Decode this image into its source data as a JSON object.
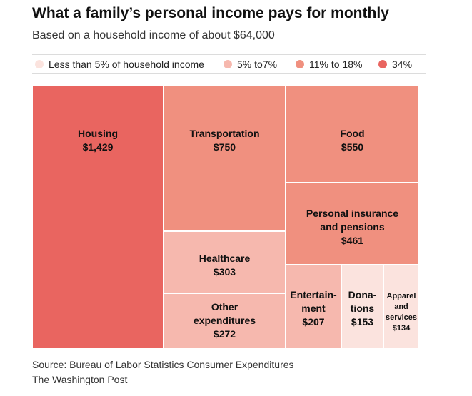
{
  "header": {
    "title": "What a family’s personal income pays for monthly",
    "subtitle": "Based on a household income of about $64,000"
  },
  "legend": [
    {
      "label": "Less than 5% of household income",
      "color": "#fbe3de"
    },
    {
      "label": "5% to7%",
      "color": "#f6b8ae"
    },
    {
      "label": "11% to 18%",
      "color": "#f0907f"
    },
    {
      "label": "34%",
      "color": "#e96560"
    }
  ],
  "chart_data": {
    "type": "treemap",
    "title": "What a family’s personal income pays for monthly",
    "subtitle": "Based on a household income of about $64,000",
    "unit": "USD per month",
    "items": [
      {
        "name": "Housing",
        "label_lines": [
          "Housing"
        ],
        "value": 1429,
        "display": "$1,429",
        "group": "34%"
      },
      {
        "name": "Transportation",
        "label_lines": [
          "Transportation"
        ],
        "value": 750,
        "display": "$750",
        "group": "11% to 18%"
      },
      {
        "name": "Food",
        "label_lines": [
          "Food"
        ],
        "value": 550,
        "display": "$550",
        "group": "11% to 18%"
      },
      {
        "name": "Personal insurance and pensions",
        "label_lines": [
          "Personal insurance",
          "and pensions"
        ],
        "value": 461,
        "display": "$461",
        "group": "11% to 18%"
      },
      {
        "name": "Healthcare",
        "label_lines": [
          "Healthcare"
        ],
        "value": 303,
        "display": "$303",
        "group": "5% to7%"
      },
      {
        "name": "Other expenditures",
        "label_lines": [
          "Other",
          "expenditures"
        ],
        "value": 272,
        "display": "$272",
        "group": "5% to7%"
      },
      {
        "name": "Entertainment",
        "label_lines": [
          "Entertain-",
          "ment"
        ],
        "value": 207,
        "display": "$207",
        "group": "5% to7%"
      },
      {
        "name": "Donations",
        "label_lines": [
          "Dona-",
          "tions"
        ],
        "value": 153,
        "display": "$153",
        "group": "Less than 5% of household income"
      },
      {
        "name": "Apparel and services",
        "label_lines": [
          "Apparel",
          "and",
          "services"
        ],
        "value": 134,
        "display": "$134",
        "group": "Less than 5% of household income"
      }
    ]
  },
  "footer": {
    "source": "Source: Bureau of Labor Statistics Consumer Expenditures",
    "credit": "The Washington Post"
  }
}
